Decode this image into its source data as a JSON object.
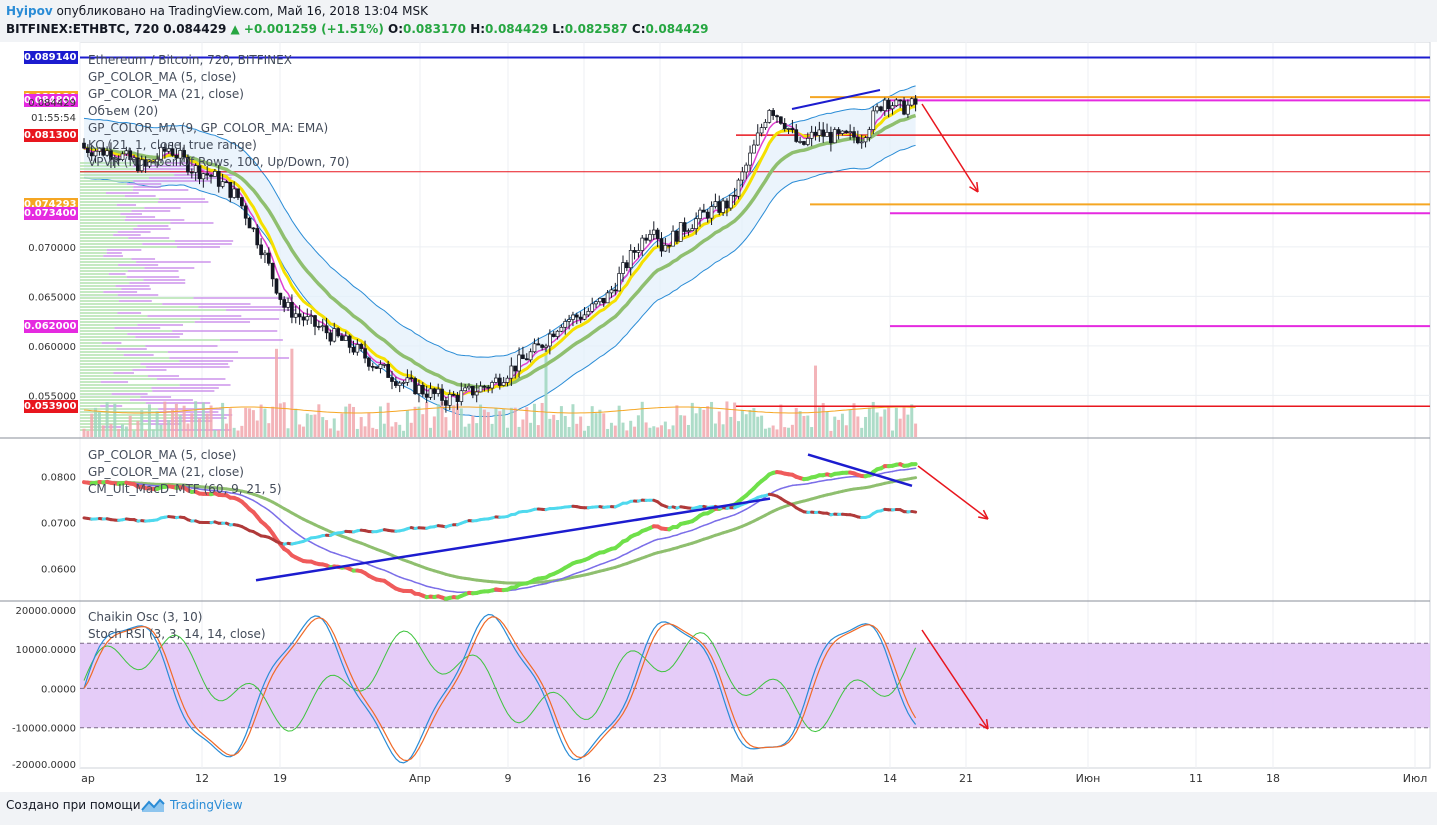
{
  "header": {
    "author": "Hyipov",
    "published": "опубликовано на TradingView.com, Май 16, 2018 13:04 MSK",
    "symbol": "BITFINEX:ETHBTC, 720",
    "last": "0.084429",
    "change": "+0.001259 (+1.51%)",
    "o_label": "O:",
    "o_value": "0.083170",
    "h_label": "H:",
    "h_value": "0.084429",
    "l_label": "L:",
    "l_value": "0.082587",
    "c_label": "C:",
    "c_value": "0.084429"
  },
  "legend_main": [
    "Ethereum / Bitcoin, 720, BITFINEX",
    "GP_COLOR_MA (5, close)",
    "GP_COLOR_MA (21, close)",
    "Объем (20)",
    "GP_COLOR_MA (9, GP_COLOR_MA: EMA)",
    "KC (21, 1, close, true range)",
    "VPVR (Number Of Rows, 100, Up/Down, 70)"
  ],
  "legend_mid": [
    "GP_COLOR_MA (5, close)",
    "GP_COLOR_MA (21, close)",
    "CM_Ult_MacD_MTF (60, 9, 21, 5)"
  ],
  "legend_low": [
    "Chaikin Osc (3, 10)",
    "Stoch RSI (3, 3, 14, 14, close)"
  ],
  "price_labels": [
    {
      "text": "0.089140",
      "color": "#1c1ccf",
      "value": 0.08914
    },
    {
      "text": "0.085130",
      "color": "#f5a623",
      "value": 0.08513
    },
    {
      "text": "0.084800",
      "color": "#e52ae0",
      "value": 0.0848
    },
    {
      "text": "0.081300",
      "color": "#e8161e",
      "value": 0.0813
    },
    {
      "text": "0.074293",
      "color": "#f5a623",
      "value": 0.074293
    },
    {
      "text": "0.073400",
      "color": "#e52ae0",
      "value": 0.0734
    },
    {
      "text": "0.062000",
      "color": "#e52ae0",
      "value": 0.062
    },
    {
      "text": "0.053900",
      "color": "#e8161e",
      "value": 0.0539
    }
  ],
  "price_text": [
    {
      "text": "0.084429",
      "value": 0.084429
    },
    {
      "text": "01:55:54",
      "value": 0.0829
    }
  ],
  "price_ticks": [
    "0.070000",
    "0.065000",
    "0.060000",
    "0.055000"
  ],
  "mid_ticks": [
    "0.0800",
    "0.0700",
    "0.0600"
  ],
  "low_ticks": [
    "20000.0000",
    "10000.0000",
    "0.0000",
    "-10000.0000",
    "-20000.0000"
  ],
  "x_labels": [
    "ар",
    "12",
    "19",
    "Апр",
    "9",
    "16",
    "23",
    "Май",
    "14",
    "21",
    "Июн",
    "11",
    "18",
    "Июл"
  ],
  "footer": {
    "text": "Создано при помощи",
    "brand": "TradingView"
  },
  "colors": {
    "up": "#ffffff",
    "down": "#131722",
    "ma5": "#f5e000",
    "ma21": "#8fbf6f",
    "kc": "#2a8cd6",
    "blue_line": "#1c1ccf",
    "red_line": "#e8161e",
    "stoch_band": "#e2c6f7"
  },
  "chart_data": {
    "type": "candlestick",
    "symbol": "ETHBTC",
    "interval": "720",
    "exchange": "BITFINEX",
    "ylim_price": [
      0.0508,
      0.0905
    ],
    "price_anchors": [
      [
        0,
        0.08
      ],
      [
        8,
        0.0795
      ],
      [
        16,
        0.078
      ],
      [
        22,
        0.08
      ],
      [
        28,
        0.078
      ],
      [
        34,
        0.077
      ],
      [
        40,
        0.075
      ],
      [
        46,
        0.07
      ],
      [
        52,
        0.064
      ],
      [
        58,
        0.0625
      ],
      [
        64,
        0.0612
      ],
      [
        70,
        0.0598
      ],
      [
        76,
        0.058
      ],
      [
        82,
        0.0565
      ],
      [
        88,
        0.0555
      ],
      [
        94,
        0.0546
      ],
      [
        100,
        0.0553
      ],
      [
        106,
        0.0562
      ],
      [
        112,
        0.058
      ],
      [
        118,
        0.0598
      ],
      [
        124,
        0.0625
      ],
      [
        130,
        0.0632
      ],
      [
        136,
        0.065
      ],
      [
        142,
        0.069
      ],
      [
        148,
        0.0725
      ],
      [
        150,
        0.07
      ],
      [
        156,
        0.072
      ],
      [
        162,
        0.0735
      ],
      [
        168,
        0.0745
      ],
      [
        174,
        0.08
      ],
      [
        178,
        0.0842
      ],
      [
        182,
        0.0826
      ],
      [
        186,
        0.08
      ],
      [
        190,
        0.0815
      ],
      [
        196,
        0.081
      ],
      [
        202,
        0.0812
      ],
      [
        208,
        0.085
      ],
      [
        212,
        0.084
      ],
      [
        216,
        0.0844
      ]
    ],
    "mid_ylim": [
      0.0531,
      0.0882
    ],
    "low_ylim": [
      -20000,
      22000
    ],
    "stoch_band": [
      -10000,
      11500
    ]
  }
}
